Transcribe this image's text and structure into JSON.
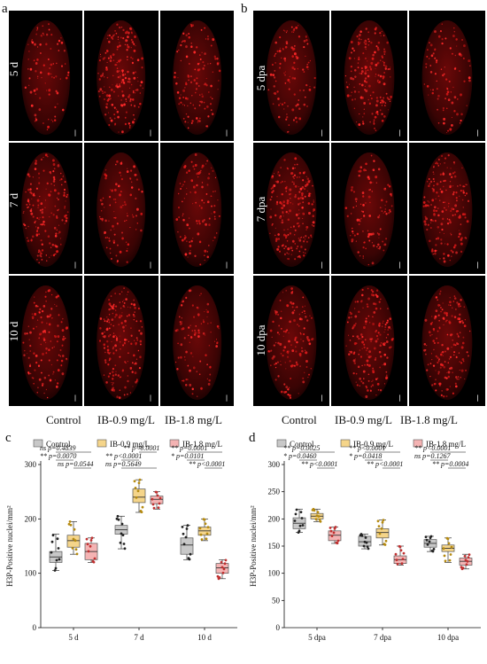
{
  "panels": {
    "a": {
      "letter": "a",
      "rows": [
        "5 d",
        "7 d",
        "10 d"
      ],
      "columns": [
        "Control",
        "IB-0.9 mg/L",
        "IB-1.8 mg/L"
      ]
    },
    "b": {
      "letter": "b",
      "rows": [
        "5 dpa",
        "7 dpa",
        "10 dpa"
      ],
      "columns": [
        "Control",
        "IB-0.9 mg/L",
        "IB-1.8 mg/L"
      ]
    }
  },
  "chart_data": [
    {
      "letter": "c",
      "type": "box",
      "ylabel": "H3P-Positive nuclei/mm²",
      "ylim": [
        0,
        300
      ],
      "yticks": [
        0,
        100,
        200,
        300
      ],
      "categories": [
        "5 d",
        "7 d",
        "10 d"
      ],
      "legend": [
        "Control",
        "IB-0.9 mg/L",
        "IB-1.8 mg/L"
      ],
      "colors": [
        "#c8c8c8",
        "#f5d58a",
        "#f4b3b3"
      ],
      "point_colors": [
        "#222222",
        "#b58a10",
        "#c03030"
      ],
      "series": [
        {
          "name": "Control",
          "boxes": [
            {
              "min": 105,
              "q1": 120,
              "median": 130,
              "q3": 140,
              "max": 172
            },
            {
              "min": 145,
              "q1": 172,
              "median": 180,
              "q3": 188,
              "max": 205
            },
            {
              "min": 125,
              "q1": 135,
              "median": 152,
              "q3": 165,
              "max": 188
            }
          ]
        },
        {
          "name": "IB-0.9 mg/L",
          "boxes": [
            {
              "min": 135,
              "q1": 148,
              "median": 160,
              "q3": 170,
              "max": 195
            },
            {
              "min": 212,
              "q1": 230,
              "median": 240,
              "q3": 255,
              "max": 272
            },
            {
              "min": 160,
              "q1": 170,
              "median": 178,
              "q3": 185,
              "max": 200
            }
          ]
        },
        {
          "name": "IB-1.8 mg/L",
          "boxes": [
            {
              "min": 120,
              "q1": 125,
              "median": 140,
              "q3": 155,
              "max": 165
            },
            {
              "min": 218,
              "q1": 228,
              "median": 236,
              "q3": 242,
              "max": 250
            },
            {
              "min": 90,
              "q1": 100,
              "median": 110,
              "q3": 118,
              "max": 125
            }
          ]
        }
      ],
      "annotations": [
        {
          "text": "ns p=0.4839",
          "group": 0,
          "from": 0,
          "to": 2,
          "level": 0
        },
        {
          "text": "** p=0.0070",
          "group": 0,
          "from": 0,
          "to": 1,
          "level": 1
        },
        {
          "text": "ns p=0.0544",
          "group": 0,
          "from": 1,
          "to": 2,
          "level": 2
        },
        {
          "text": "** p<0.0001",
          "group": 1,
          "from": 1,
          "to": 2,
          "level": 0
        },
        {
          "text": "** p<0.0001",
          "group": 1,
          "from": 0,
          "to": 1,
          "level": 1
        },
        {
          "text": "ns p=0.5649",
          "group": 1,
          "from": 0,
          "to": 2,
          "level": 2
        },
        {
          "text": "** p=0.0001",
          "group": 2,
          "from": 0,
          "to": 2,
          "level": 0
        },
        {
          "text": "* p=0.0101",
          "group": 2,
          "from": 0,
          "to": 1,
          "level": 1
        },
        {
          "text": "** p<0.0001",
          "group": 2,
          "from": 1,
          "to": 2,
          "level": 2
        }
      ]
    },
    {
      "letter": "d",
      "type": "box",
      "ylabel": "H3P-Positive nuclei/mm²",
      "ylim": [
        0,
        300
      ],
      "yticks": [
        0,
        50,
        100,
        150,
        200,
        250,
        300
      ],
      "categories": [
        "5 dpa",
        "7 dpa",
        "10 dpa"
      ],
      "legend": [
        "Control",
        "IB-0.9 mg/L",
        "IB-1.8 mg/L"
      ],
      "colors": [
        "#c8c8c8",
        "#f5d58a",
        "#f4b3b3"
      ],
      "point_colors": [
        "#222222",
        "#b58a10",
        "#c03030"
      ],
      "series": [
        {
          "name": "Control",
          "boxes": [
            {
              "min": 175,
              "q1": 182,
              "median": 192,
              "q3": 202,
              "max": 218
            },
            {
              "min": 145,
              "q1": 150,
              "median": 158,
              "q3": 168,
              "max": 172
            },
            {
              "min": 140,
              "q1": 148,
              "median": 155,
              "q3": 162,
              "max": 168
            }
          ]
        },
        {
          "name": "IB-0.9 mg/L",
          "boxes": [
            {
              "min": 195,
              "q1": 200,
              "median": 205,
              "q3": 210,
              "max": 218
            },
            {
              "min": 152,
              "q1": 165,
              "median": 175,
              "q3": 182,
              "max": 198
            },
            {
              "min": 120,
              "q1": 140,
              "median": 146,
              "q3": 152,
              "max": 165
            }
          ]
        },
        {
          "name": "IB-1.8 mg/L",
          "boxes": [
            {
              "min": 155,
              "q1": 160,
              "median": 170,
              "q3": 178,
              "max": 185
            },
            {
              "min": 115,
              "q1": 118,
              "median": 125,
              "q3": 132,
              "max": 150
            },
            {
              "min": 108,
              "q1": 115,
              "median": 122,
              "q3": 128,
              "max": 135
            }
          ]
        }
      ],
      "annotations": [
        {
          "text": "** p=0.0025",
          "group": 0,
          "from": 0,
          "to": 2,
          "level": 0
        },
        {
          "text": "* p=0.0460",
          "group": 0,
          "from": 0,
          "to": 1,
          "level": 1
        },
        {
          "text": "** p<0.0001",
          "group": 0,
          "from": 1,
          "to": 2,
          "level": 2
        },
        {
          "text": "** p<0.0001",
          "group": 1,
          "from": 0,
          "to": 2,
          "level": 0
        },
        {
          "text": "* p=0.0418",
          "group": 1,
          "from": 0,
          "to": 1,
          "level": 1
        },
        {
          "text": "** p<0.0001",
          "group": 1,
          "from": 1,
          "to": 2,
          "level": 2
        },
        {
          "text": "** p<0.0001",
          "group": 2,
          "from": 0,
          "to": 2,
          "level": 0
        },
        {
          "text": "ns p=0.1267",
          "group": 2,
          "from": 0,
          "to": 1,
          "level": 1
        },
        {
          "text": "** p=0.0004",
          "group": 2,
          "from": 1,
          "to": 2,
          "level": 2
        }
      ]
    }
  ]
}
